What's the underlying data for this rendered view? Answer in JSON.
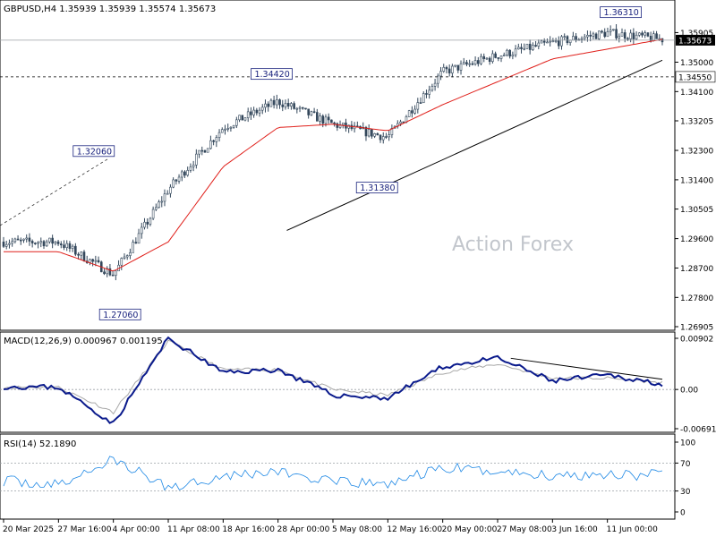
{
  "main": {
    "title": "GBPUSD,H4  1.35939 1.35939 1.35574 1.35673",
    "current_price": "1.35673",
    "watermark": "Action Forex",
    "y_ticks": [
      "1.35905",
      "1.35000",
      "1.34100",
      "1.33205",
      "1.32300",
      "1.31400",
      "1.30505",
      "1.29600",
      "1.28700",
      "1.27800",
      "1.26905"
    ],
    "levels": {
      "support_label": "1.34550"
    },
    "annotations": [
      {
        "label": "1.32060",
        "price": 1.3206
      },
      {
        "label": "1.27060",
        "price": 1.2706
      },
      {
        "label": "1.34420",
        "price": 1.3442
      },
      {
        "label": "1.31380",
        "price": 1.3138
      },
      {
        "label": "1.36310",
        "price": 1.3631
      }
    ]
  },
  "macd": {
    "title": "MACD(12,26,9) 0.000967 0.001195",
    "ticks": [
      "0.00902",
      "0.00",
      "-0.006915"
    ]
  },
  "rsi": {
    "title": "RSI(14) 52.1890",
    "ticks": [
      "100",
      "70",
      "30",
      "0"
    ]
  },
  "x_labels": [
    "20 Mar 2025",
    "27 Mar 16:00",
    "4 Apr 00:00",
    "11 Apr 08:00",
    "18 Apr 16:00",
    "28 Apr 00:00",
    "5 May 08:00",
    "12 May 16:00",
    "20 May 00:00",
    "27 May 08:00",
    "3 Jun 16:00",
    "11 Jun 00:00"
  ],
  "colors": {
    "candle": "#33475b",
    "ma": "#e0201b",
    "macd": "#0a1a8c",
    "signal": "#a8a8a8",
    "rsi": "#1e88e5",
    "trendline": "#000000",
    "tag_border": "#1a237e",
    "tag_text": "#1a237e",
    "price_box": "#000000"
  },
  "chart_data": {
    "type": "line",
    "instrument": "GBPUSD",
    "timeframe": "H4",
    "ohlc_last": {
      "open": 1.35939,
      "high": 1.35939,
      "low": 1.35574,
      "close": 1.35673
    },
    "ylim": [
      1.26905,
      1.363
    ],
    "x": [
      "20 Mar 2025",
      "27 Mar 16:00",
      "4 Apr 00:00",
      "11 Apr 08:00",
      "18 Apr 16:00",
      "28 Apr 00:00",
      "5 May 08:00",
      "12 May 16:00",
      "20 May 00:00",
      "27 May 08:00",
      "3 Jun 16:00",
      "11 Jun 00:00",
      "end"
    ],
    "series": [
      {
        "values": [
          1.295,
          1.295,
          1.285,
          1.311,
          1.33,
          1.338,
          1.331,
          1.327,
          1.347,
          1.352,
          1.356,
          1.359,
          1.357
        ]
      },
      {
        "values": [
          1.292,
          1.292,
          1.286,
          1.295,
          1.318,
          1.33,
          1.331,
          1.329,
          1.337,
          1.344,
          1.351,
          1.354,
          1.357
        ]
      }
    ],
    "macd_series": [
      {
        "values": [
          0.0005,
          0.0004,
          -0.006,
          0.009,
          0.003,
          0.0035,
          -0.001,
          -0.0015,
          0.004,
          0.0055,
          0.0015,
          0.0025,
          0.001
        ]
      },
      {
        "values": [
          0.0004,
          0.0004,
          -0.004,
          0.0085,
          0.0035,
          0.0035,
          0.0,
          -0.001,
          0.003,
          0.0045,
          0.002,
          0.002,
          0.0012
        ]
      }
    ],
    "macd_ylim": [
      -0.006915,
      0.00902
    ],
    "rsi_series": [
      {
        "values": [
          45,
          38,
          75,
          35,
          52,
          58,
          42,
          40,
          63,
          58,
          52,
          55,
          52
        ]
      }
    ],
    "rsi_ylim": [
      0,
      100
    ]
  }
}
